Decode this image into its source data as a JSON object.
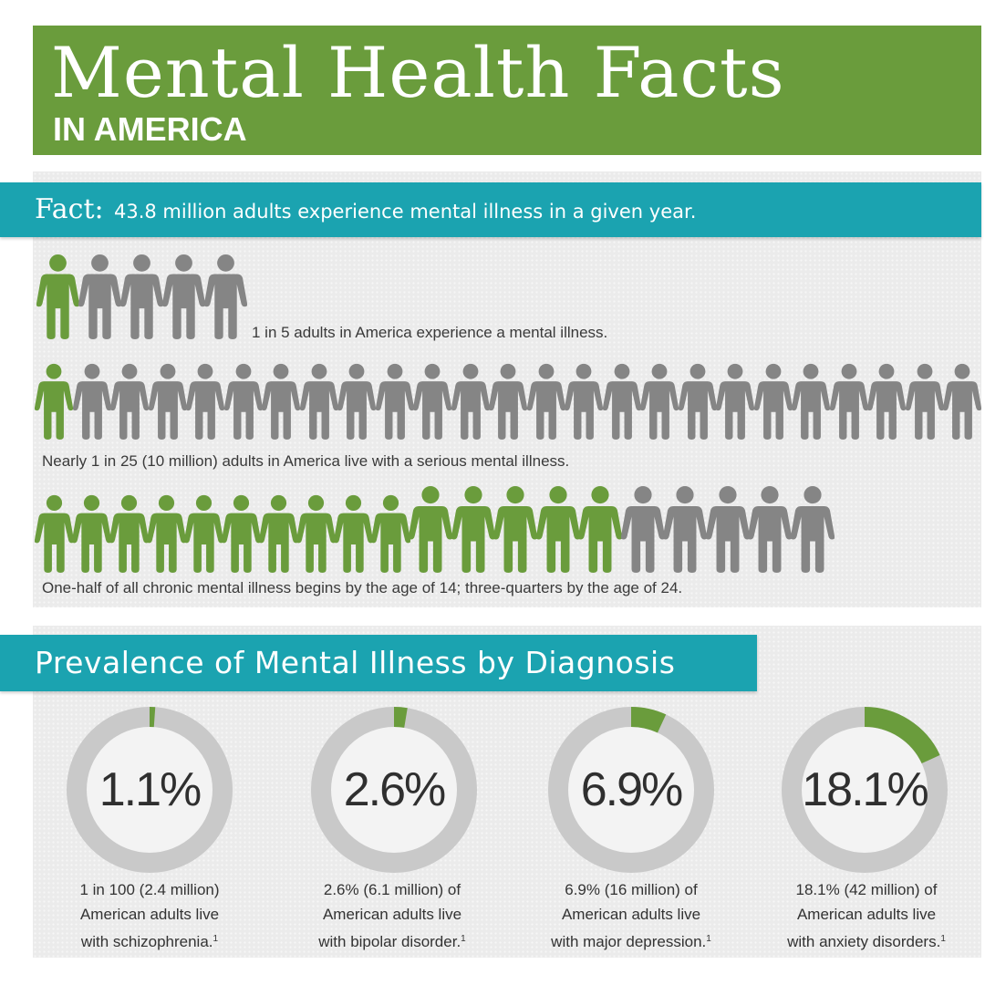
{
  "header": {
    "title": "Mental Health Facts",
    "subtitle": "IN AMERICA"
  },
  "fact": {
    "label": "Fact:",
    "text": "43.8 million adults experience mental illness in a given year."
  },
  "rows": [
    {
      "highlighted": 1,
      "total": 5,
      "caption": "1 in 5 adults in America experience a mental illness."
    },
    {
      "highlighted": 1,
      "total": 25,
      "caption": "Nearly 1 in 25 (10 million) adults in America live with a serious mental illness."
    },
    {
      "highlighted": 15,
      "total": 20,
      "caption": "One-half of all chronic mental illness begins by the age of 14; three-quarters by the age of 24."
    }
  ],
  "prevalence": {
    "title": "Prevalence of Mental Illness by Diagnosis",
    "stats": [
      {
        "value": "1.1%",
        "percent": 1.1,
        "line1": "1 in 100 (2.4 million)",
        "line2": "American adults live",
        "line3": "with schizophrenia.",
        "note": "1"
      },
      {
        "value": "2.6%",
        "percent": 2.6,
        "line1": "2.6% (6.1 million) of",
        "line2": "American adults live",
        "line3": "with bipolar disorder.",
        "note": "1"
      },
      {
        "value": "6.9%",
        "percent": 6.9,
        "line1": "6.9% (16 million) of",
        "line2": "American adults live",
        "line3": "with major depression.",
        "note": "1"
      },
      {
        "value": "18.1%",
        "percent": 18.1,
        "line1": "18.1% (42 million) of",
        "line2": "American adults live",
        "line3": "with anxiety disorders.",
        "note": "1"
      }
    ]
  },
  "colors": {
    "green": "#6a9c3c",
    "gray": "#858585",
    "teal": "#1ba3b0",
    "ring_track": "#c9c9c9",
    "ring_fill": "#6a9c3c"
  },
  "icons": {
    "person": "person-icon"
  }
}
